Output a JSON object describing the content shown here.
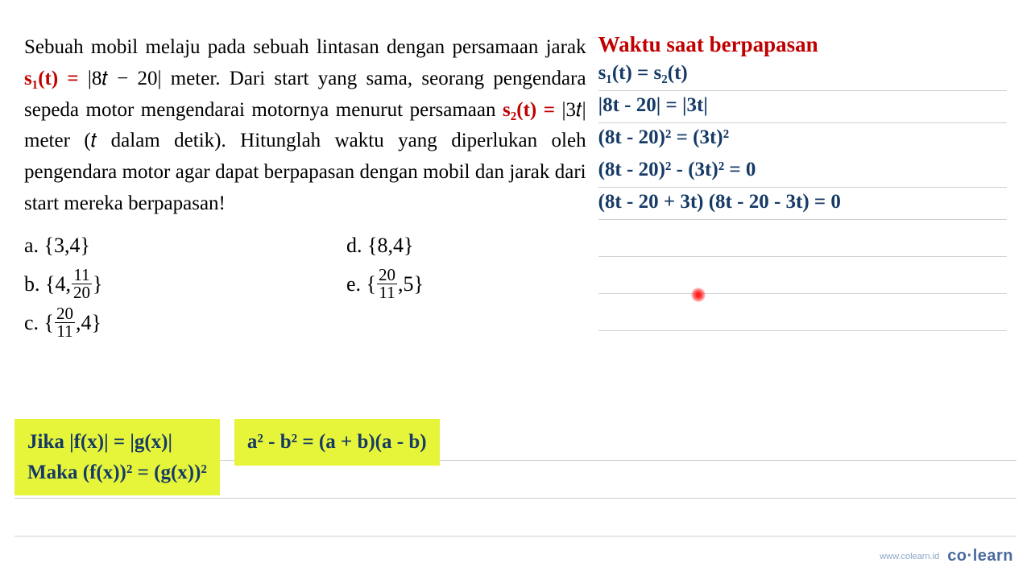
{
  "problem": {
    "part1": "Sebuah mobil melaju pada sebuah lintasan dengan persamaan jarak ",
    "eq1": "s₁(t) = ",
    "eq1b": " |8𝑡 − 20| meter. Dari start yang sama, seorang pengendara sepeda motor mengendarai motornya menurut persamaan ",
    "eq2": "s₂(t) = ",
    "eq2b": " |3𝑡| meter (𝑡 dalam detik). Hitunglah waktu yang diperlukan oleh pengendara motor agar dapat berpapasan dengan mobil dan jarak dari start mereka berpapasan!"
  },
  "options": {
    "a": {
      "label": "a. {3,4}"
    },
    "b": {
      "label": "b. {4,",
      "num": "11",
      "den": "20",
      "close": "}"
    },
    "c": {
      "label": "c. {",
      "num": "20",
      "den": "11",
      "close": ",4}"
    },
    "d": {
      "label": "d. {8,4}"
    },
    "e": {
      "label": "e. {",
      "num": "20",
      "den": "11",
      "close": ",5}"
    }
  },
  "work": {
    "title": "Waktu saat berpapasan",
    "lines": [
      "s₁(t) = s₂(t)",
      "|8t - 20| = |3t|",
      "(8t - 20)² = (3t)²",
      "(8t - 20)² - (3t)² = 0",
      "(8t - 20 + 3t) (8t - 20 - 3t) = 0"
    ]
  },
  "formulas": {
    "box1_line1": "Jika |f(x)| = |g(x)|",
    "box1_line2": "Maka (f(x))² = (g(x))²",
    "box2": "a² - b² = (a + b)(a - b)"
  },
  "footer": {
    "url": "www.colearn.id",
    "logo": "co·learn"
  },
  "colors": {
    "text": "#000000",
    "equation_red": "#c00000",
    "work_blue": "#163a66",
    "highlight": "#e6f53a",
    "line": "#d0d0d0",
    "logo": "#4a6a9e",
    "dot": "#ff2020"
  }
}
